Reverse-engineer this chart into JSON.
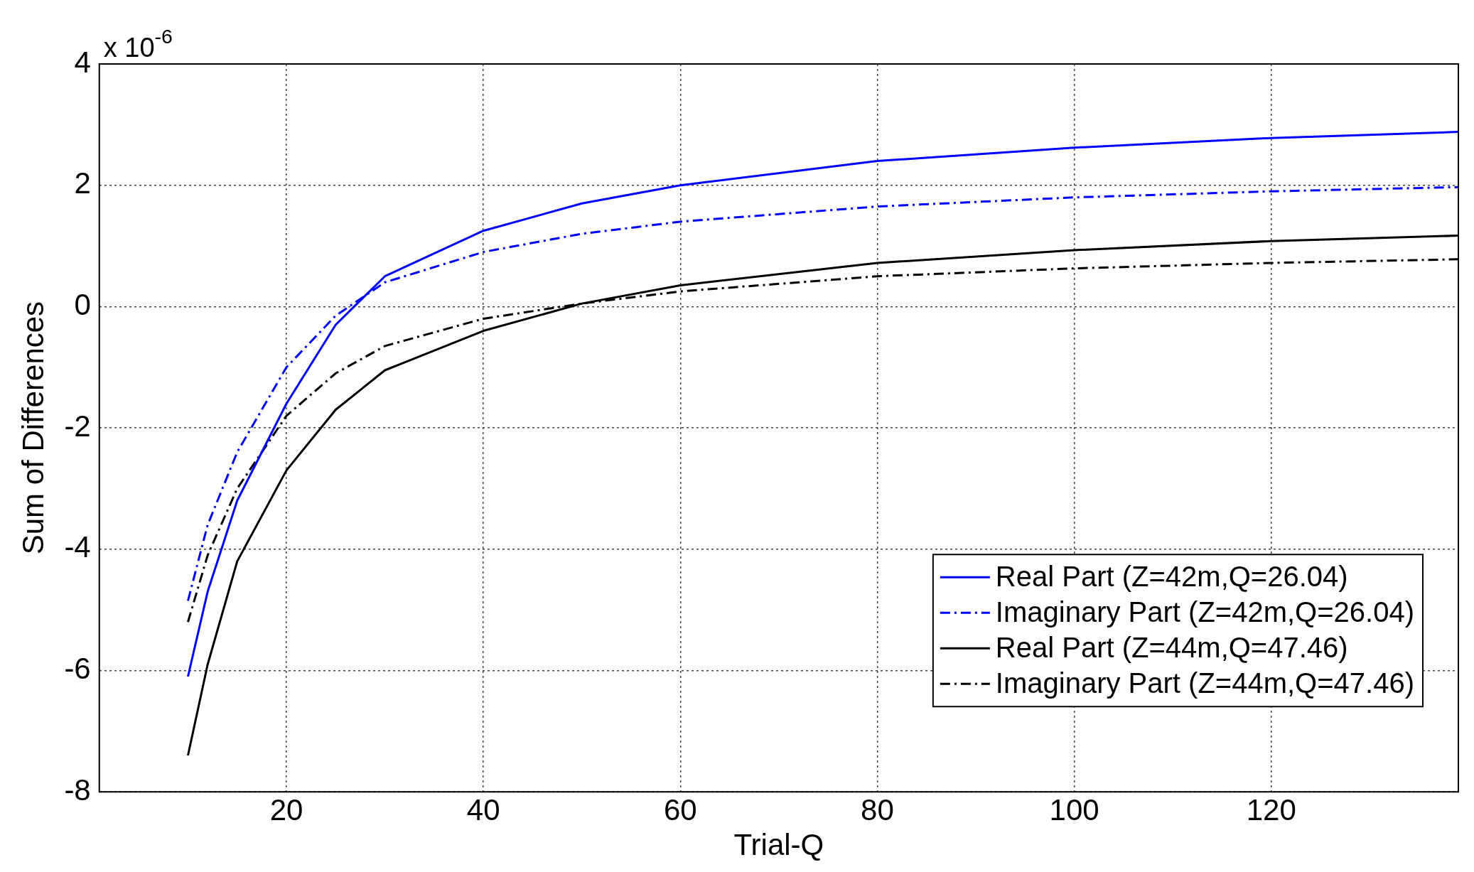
{
  "chart_data": {
    "type": "line",
    "xlabel": "Trial-Q",
    "ylabel": "Sum of Differences",
    "annotations": [
      "x 10$^{-6}$"
    ],
    "xlim": [
      1,
      139
    ],
    "xticks": [
      20,
      40,
      60,
      80,
      100,
      120
    ],
    "ylim": [
      -8,
      4
    ],
    "yticks": [
      -8,
      -6,
      -4,
      -2,
      0,
      2,
      4
    ],
    "grid": true,
    "legend": "bottom right",
    "marker": "none",
    "x": [
      10,
      12,
      15,
      20,
      25,
      30,
      40,
      50,
      60,
      80,
      100,
      120,
      139
    ],
    "series": [
      {
        "name": "Real Part (Z=42m,Q=26.04)",
        "color": "#0000ff",
        "line_style": "solid",
        "values": [
          -6.1,
          -4.7,
          -3.2,
          -1.6,
          -0.3,
          0.5,
          1.25,
          1.7,
          2.0,
          2.4,
          2.62,
          2.78,
          2.88
        ]
      },
      {
        "name": "Imaginary Part (Z=42m,Q=26.04)",
        "color": "#0000ff",
        "line_style": "dashed",
        "values": [
          -4.85,
          -3.6,
          -2.4,
          -1.0,
          -0.15,
          0.4,
          0.9,
          1.2,
          1.4,
          1.65,
          1.8,
          1.9,
          1.97
        ]
      },
      {
        "name": "Real Part (Z=44m,Q=47.46)",
        "color": "#000000",
        "line_style": "solid",
        "values": [
          -7.4,
          -5.9,
          -4.2,
          -2.7,
          -1.7,
          -1.05,
          -0.4,
          0.05,
          0.35,
          0.72,
          0.93,
          1.08,
          1.17
        ]
      },
      {
        "name": "Imaginary Part (Z=44m,Q=47.46)",
        "color": "#000000",
        "line_style": "dashed",
        "values": [
          -5.2,
          -4.1,
          -3.0,
          -1.8,
          -1.1,
          -0.65,
          -0.2,
          0.05,
          0.25,
          0.5,
          0.63,
          0.72,
          0.78
        ]
      }
    ]
  }
}
